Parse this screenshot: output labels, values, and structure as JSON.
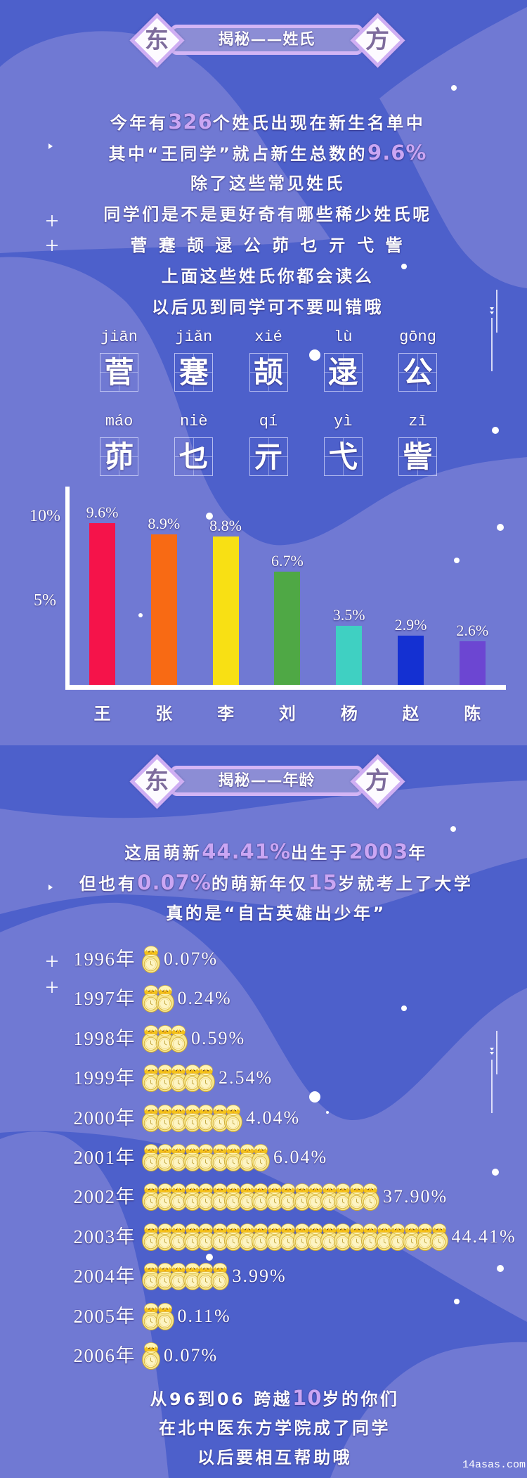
{
  "colors": {
    "background": "#4d60cb",
    "highlight": "#caa6f3",
    "banner_border": "#d3b5f5",
    "banner_char": "#7d6b9c"
  },
  "surname_section": {
    "banner": {
      "left_char": "东",
      "title": "揭秘——姓氏",
      "right_char": "方"
    },
    "intro_lines": [
      {
        "parts": [
          {
            "text": "今年有"
          },
          {
            "text": "326",
            "highlight": true
          },
          {
            "text": "个姓氏出现在新生名单中"
          }
        ]
      },
      {
        "parts": [
          {
            "text": "其中“王同学”就占新生总数的"
          },
          {
            "text": "9.6%",
            "highlight": true
          }
        ]
      },
      {
        "parts": [
          {
            "text": "除了这些常见姓氏"
          }
        ]
      },
      {
        "parts": [
          {
            "text": "同学们是不是更好奇有哪些稀少姓氏呢"
          }
        ]
      },
      {
        "parts": [
          {
            "text": "菅 蹇 颉 逯 公 茆 乜 亓 弋 訾"
          }
        ]
      },
      {
        "parts": [
          {
            "text": "上面这些姓氏你都会读么"
          }
        ]
      },
      {
        "parts": [
          {
            "text": "以后见到同学可不要叫错哦"
          }
        ]
      }
    ],
    "rare_surnames": [
      {
        "pinyin": "jiān",
        "char": "菅"
      },
      {
        "pinyin": "jiǎn",
        "char": "蹇"
      },
      {
        "pinyin": "xié",
        "char": "颉"
      },
      {
        "pinyin": "lù",
        "char": "逯"
      },
      {
        "pinyin": "gōng",
        "char": "公"
      },
      {
        "pinyin": "máo",
        "char": "茆"
      },
      {
        "pinyin": "niè",
        "char": "乜"
      },
      {
        "pinyin": "qí",
        "char": "亓"
      },
      {
        "pinyin": "yì",
        "char": "弋"
      },
      {
        "pinyin": "zī",
        "char": "訾"
      }
    ]
  },
  "age_section": {
    "banner": {
      "left_char": "东",
      "title": "揭秘——年龄",
      "right_char": "方"
    },
    "intro_lines": [
      {
        "parts": [
          {
            "text": "这届萌新"
          },
          {
            "text": "44.41%",
            "highlight": true
          },
          {
            "text": "出生于"
          },
          {
            "text": "2003",
            "highlight": true
          },
          {
            "text": "年"
          }
        ]
      },
      {
        "parts": [
          {
            "text": "但也有"
          },
          {
            "text": "0.07%",
            "highlight": true
          },
          {
            "text": "的萌新年仅"
          },
          {
            "text": "15",
            "highlight": true
          },
          {
            "text": "岁就考上了大学"
          }
        ]
      },
      {
        "parts": [
          {
            "text": "真的是“自古英雄出少年”"
          }
        ]
      }
    ],
    "closing_lines": [
      {
        "parts": [
          {
            "text": "从96到06 跨越"
          },
          {
            "text": "10",
            "highlight": true
          },
          {
            "text": "岁的你们"
          }
        ]
      },
      {
        "parts": [
          {
            "text": "在北中医东方学院成了同学"
          }
        ]
      },
      {
        "parts": [
          {
            "text": "以后要相互帮助哦"
          }
        ]
      }
    ]
  },
  "watermark": "14asas.com",
  "chart_data": [
    {
      "type": "bar",
      "title": "",
      "xlabel": "",
      "ylabel": "",
      "categories": [
        "王",
        "张",
        "李",
        "刘",
        "杨",
        "赵",
        "陈"
      ],
      "values": [
        9.6,
        8.9,
        8.8,
        6.7,
        3.5,
        2.9,
        2.6
      ],
      "value_labels": [
        "9.6%",
        "8.9%",
        "8.8%",
        "6.7%",
        "3.5%",
        "2.9%",
        "2.6%"
      ],
      "colors": [
        "#f5134a",
        "#f86a14",
        "#f8e014",
        "#4fa845",
        "#3fd0c2",
        "#1430d2",
        "#6c46d2"
      ],
      "yticks": [
        {
          "value": 5,
          "label": "5%"
        },
        {
          "value": 10,
          "label": "10%"
        }
      ],
      "ylim": [
        0,
        10
      ],
      "grid": false,
      "legend": null
    },
    {
      "type": "bar",
      "orientation": "horizontal",
      "style": "pictograph",
      "title": "",
      "xlabel": "",
      "ylabel": "",
      "categories": [
        "1996年",
        "1997年",
        "1998年",
        "1999年",
        "2000年",
        "2001年",
        "2002年",
        "2003年",
        "2004年",
        "2005年",
        "2006年"
      ],
      "values": [
        0.07,
        0.24,
        0.59,
        2.54,
        4.04,
        6.04,
        37.9,
        44.41,
        3.99,
        0.11,
        0.07
      ],
      "value_labels": [
        "0.07%",
        "0.24%",
        "0.59%",
        "2.54%",
        "4.04%",
        "6.04%",
        "37.90%",
        "44.41%",
        "3.99%",
        "0.11%",
        "0.07%"
      ],
      "icon": "chick-egg-clock-icon",
      "icon_counts": [
        1,
        2,
        3,
        5,
        7,
        9,
        17,
        22,
        6,
        2,
        1
      ],
      "grid": false,
      "legend": null
    }
  ]
}
